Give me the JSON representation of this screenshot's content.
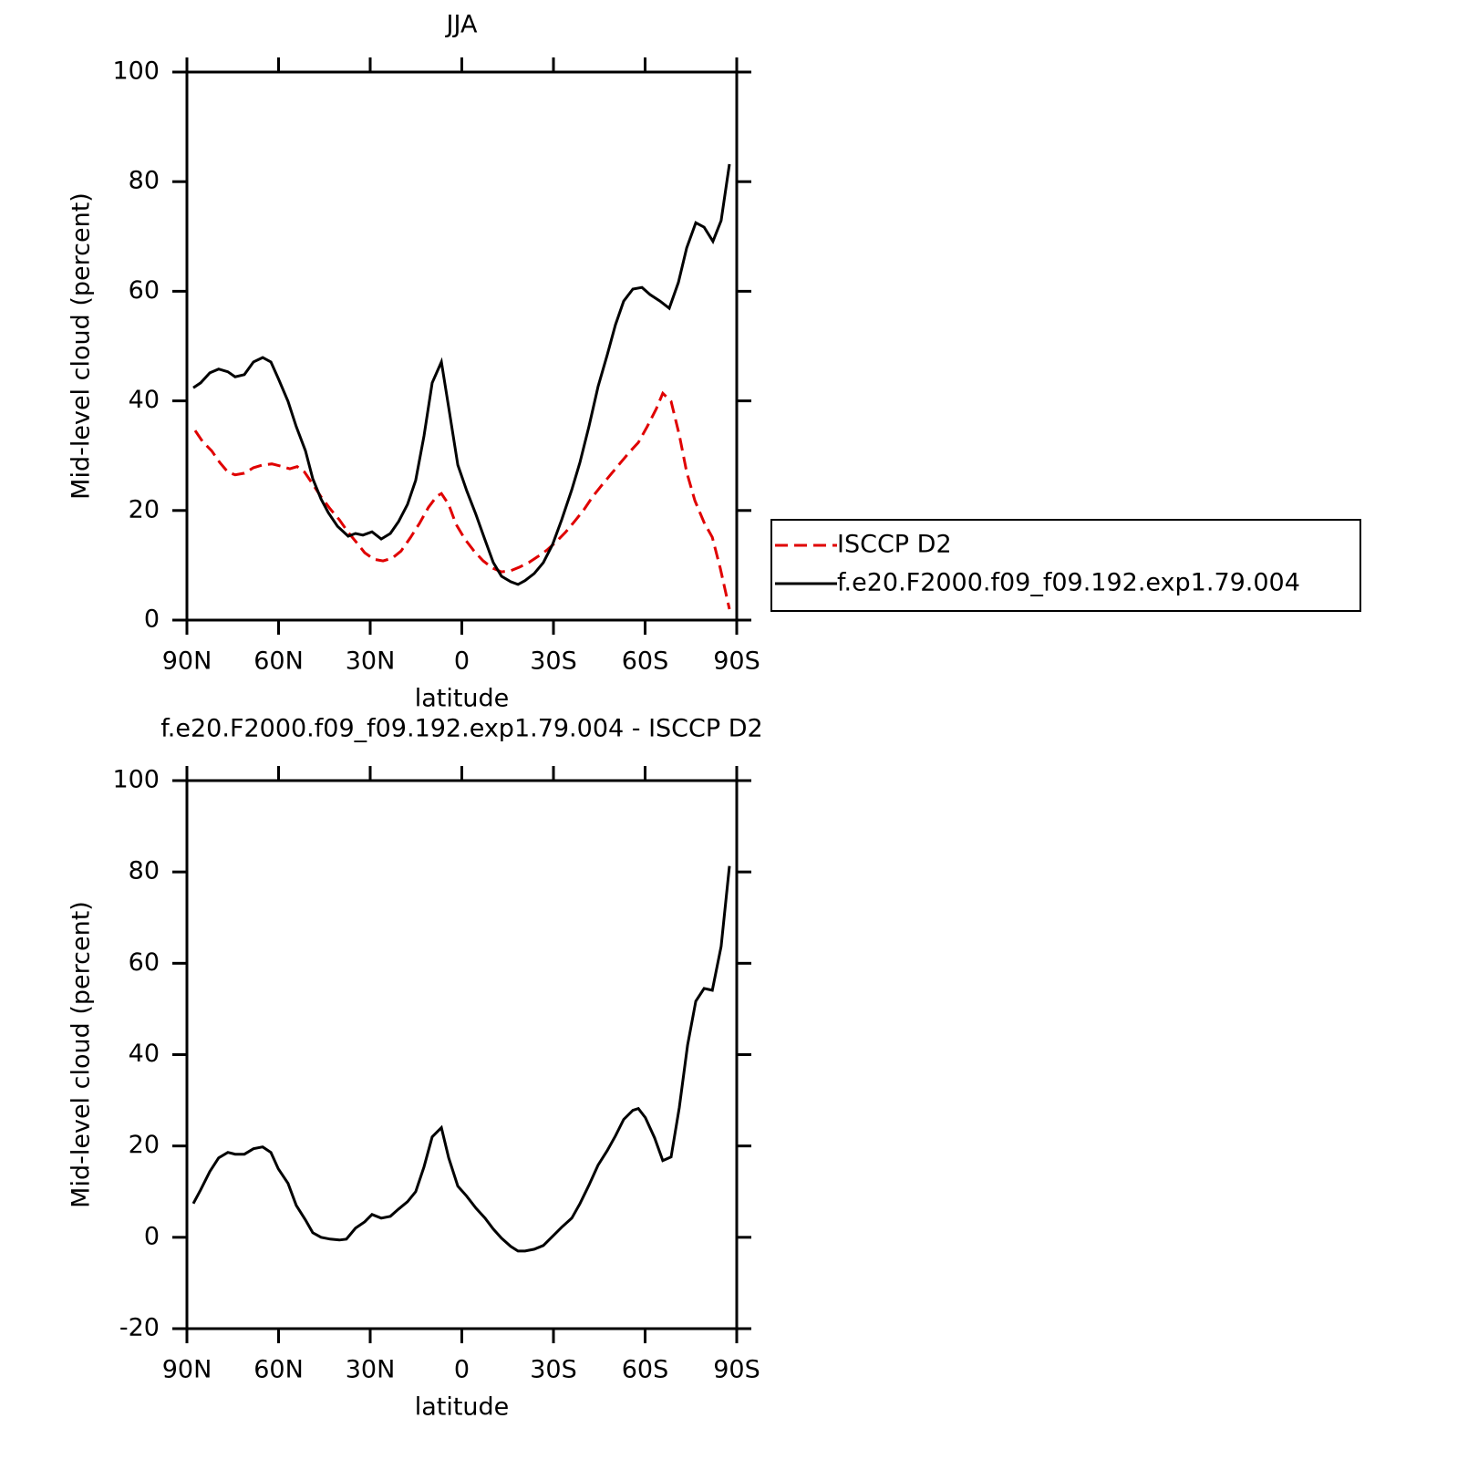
{
  "chart_data": [
    {
      "type": "line",
      "title": "JJA",
      "xlabel": "latitude",
      "ylabel": "Mid-level cloud (percent)",
      "xlim": [
        90,
        -90
      ],
      "xticks": [
        {
          "value": 90,
          "label": "90N"
        },
        {
          "value": 60,
          "label": "60N"
        },
        {
          "value": 30,
          "label": "30N"
        },
        0,
        {
          "value": -30,
          "label": "30S"
        },
        {
          "value": -60,
          "label": "60S"
        },
        {
          "value": -90,
          "label": "90S"
        }
      ],
      "ylim": [
        0,
        100
      ],
      "yticks": [
        0,
        20,
        40,
        60,
        80,
        100
      ],
      "legend": "right",
      "series": [
        {
          "name": "ISCCP D2",
          "color": "#e00000",
          "linestyle": "dashed",
          "x": [
            87.3,
            84.9,
            81.9,
            79.3,
            76.6,
            74.2,
            71.2,
            68.2,
            65.2,
            62.2,
            59.3,
            56.3,
            53.9,
            51.5,
            48.8,
            46.1,
            43.1,
            40.1,
            37.2,
            34.2,
            31.8,
            28.8,
            25.8,
            22.8,
            19.9,
            16.9,
            13.9,
            10.9,
            8.2,
            6.7,
            4.3,
            1.9,
            -1.0,
            -4.0,
            -7.0,
            -10.0,
            -13.0,
            -16.0,
            -19.0,
            -21.9,
            -24.9,
            -27.9,
            -30.9,
            -33.9,
            -36.9,
            -39.9,
            -42.8,
            -45.8,
            -48.8,
            -51.8,
            -54.8,
            -57.8,
            -60.7,
            -63.7,
            -65.8,
            -68.5,
            -71.2,
            -73.6,
            -76.3,
            -79.3,
            -82.0,
            -84.6,
            -87.6
          ],
          "values": [
            34.6,
            32.6,
            30.9,
            28.8,
            27.0,
            26.5,
            26.8,
            27.8,
            28.3,
            28.5,
            28.1,
            27.6,
            28.0,
            27.0,
            24.8,
            22.5,
            20.3,
            18.3,
            16.0,
            14.0,
            12.3,
            11.1,
            10.8,
            11.3,
            12.6,
            15.0,
            17.6,
            20.6,
            22.6,
            23.1,
            21.1,
            17.5,
            14.8,
            12.6,
            10.8,
            9.5,
            8.8,
            9.0,
            9.7,
            10.5,
            11.6,
            12.8,
            14.3,
            16.0,
            18.0,
            20.1,
            22.5,
            24.6,
            26.6,
            28.6,
            30.6,
            32.4,
            35.3,
            38.6,
            41.4,
            39.9,
            33.8,
            27.0,
            21.8,
            17.8,
            15.1,
            9.5,
            2.0
          ]
        },
        {
          "name": "f.e20.F2000.f09_f09.192.exp1.79.004",
          "color": "#000000",
          "linestyle": "solid",
          "x": [
            87.9,
            85.5,
            82.5,
            79.6,
            76.6,
            74.2,
            71.2,
            68.2,
            65.2,
            62.5,
            60.1,
            56.9,
            54.2,
            51.2,
            48.8,
            46.1,
            43.7,
            40.7,
            37.2,
            34.8,
            32.4,
            29.4,
            26.4,
            23.4,
            20.7,
            17.8,
            15.1,
            12.4,
            9.7,
            6.7,
            4.3,
            1.3,
            -1.6,
            -4.6,
            -7.6,
            -10.3,
            -13.0,
            -16.0,
            -18.4,
            -20.7,
            -23.7,
            -26.7,
            -29.7,
            -32.7,
            -36.0,
            -38.7,
            -41.6,
            -44.6,
            -47.6,
            -50.3,
            -53.0,
            -56.0,
            -59.0,
            -61.6,
            -64.9,
            -67.9,
            -70.9,
            -73.6,
            -76.6,
            -79.3,
            -82.2,
            -84.9,
            -87.6
          ],
          "values": [
            42.4,
            43.3,
            45.1,
            45.8,
            45.3,
            44.4,
            44.8,
            47.1,
            47.9,
            47.1,
            44.1,
            39.9,
            35.3,
            30.9,
            25.8,
            22.1,
            19.6,
            17.1,
            15.3,
            15.8,
            15.5,
            16.1,
            14.8,
            15.8,
            18.0,
            21.1,
            25.5,
            33.6,
            43.3,
            47.1,
            38.8,
            28.3,
            23.6,
            19.3,
            14.6,
            10.5,
            8.0,
            7.0,
            6.5,
            7.2,
            8.5,
            10.5,
            13.8,
            18.3,
            23.8,
            28.8,
            35.3,
            42.6,
            48.4,
            53.9,
            58.2,
            60.4,
            60.7,
            59.4,
            58.2,
            56.9,
            61.6,
            67.9,
            72.5,
            71.7,
            69.1,
            72.9,
            83.2
          ]
        }
      ]
    },
    {
      "type": "line",
      "title": "f.e20.F2000.f09_f09.192.exp1.79.004 - ISCCP D2",
      "xlabel": "latitude",
      "ylabel": "Mid-level cloud (percent)",
      "xlim": [
        90,
        -90
      ],
      "xticks": [
        {
          "value": 90,
          "label": "90N"
        },
        {
          "value": 60,
          "label": "60N"
        },
        {
          "value": 30,
          "label": "30N"
        },
        0,
        {
          "value": -30,
          "label": "30S"
        },
        {
          "value": -60,
          "label": "60S"
        },
        {
          "value": -90,
          "label": "90S"
        }
      ],
      "ylim": [
        -20,
        100
      ],
      "yticks": [
        -20,
        0,
        20,
        40,
        60,
        80,
        100
      ],
      "series": [
        {
          "color": "#000000",
          "linestyle": "solid",
          "x": [
            87.9,
            85.5,
            82.5,
            79.6,
            76.6,
            74.2,
            71.2,
            68.2,
            65.2,
            62.5,
            60.1,
            56.9,
            54.2,
            51.2,
            48.8,
            46.1,
            43.1,
            40.1,
            37.8,
            34.8,
            31.8,
            29.4,
            26.4,
            23.4,
            20.7,
            17.8,
            15.1,
            12.4,
            9.7,
            6.7,
            4.3,
            1.3,
            -1.6,
            -4.6,
            -7.6,
            -10.3,
            -13.0,
            -16.0,
            -18.4,
            -20.7,
            -23.7,
            -26.7,
            -29.7,
            -32.7,
            -36.0,
            -38.7,
            -41.6,
            -44.6,
            -47.6,
            -50.3,
            -53.0,
            -56.0,
            -57.8,
            -60.1,
            -63.1,
            -65.8,
            -68.5,
            -71.2,
            -73.9,
            -76.6,
            -79.3,
            -82.0,
            -84.9,
            -87.6
          ],
          "values": [
            7.4,
            10.4,
            14.4,
            17.4,
            18.6,
            18.2,
            18.2,
            19.4,
            19.8,
            18.6,
            15.0,
            11.8,
            7.0,
            3.8,
            1.0,
            0,
            -0.4,
            -0.6,
            -0.4,
            2.0,
            3.4,
            5.0,
            4.2,
            4.6,
            6.2,
            7.8,
            10.0,
            15.4,
            22.0,
            24.0,
            17.4,
            11.2,
            9.0,
            6.4,
            4.2,
            1.8,
            -0.2,
            -2.0,
            -3.0,
            -3.0,
            -2.6,
            -1.8,
            0.2,
            2.2,
            4.2,
            7.4,
            11.4,
            15.8,
            19.0,
            22.2,
            25.8,
            27.8,
            28.2,
            26.2,
            21.8,
            16.8,
            17.6,
            28.4,
            42.1,
            51.7,
            54.5,
            54.1,
            63.7,
            81.3
          ]
        }
      ]
    }
  ]
}
